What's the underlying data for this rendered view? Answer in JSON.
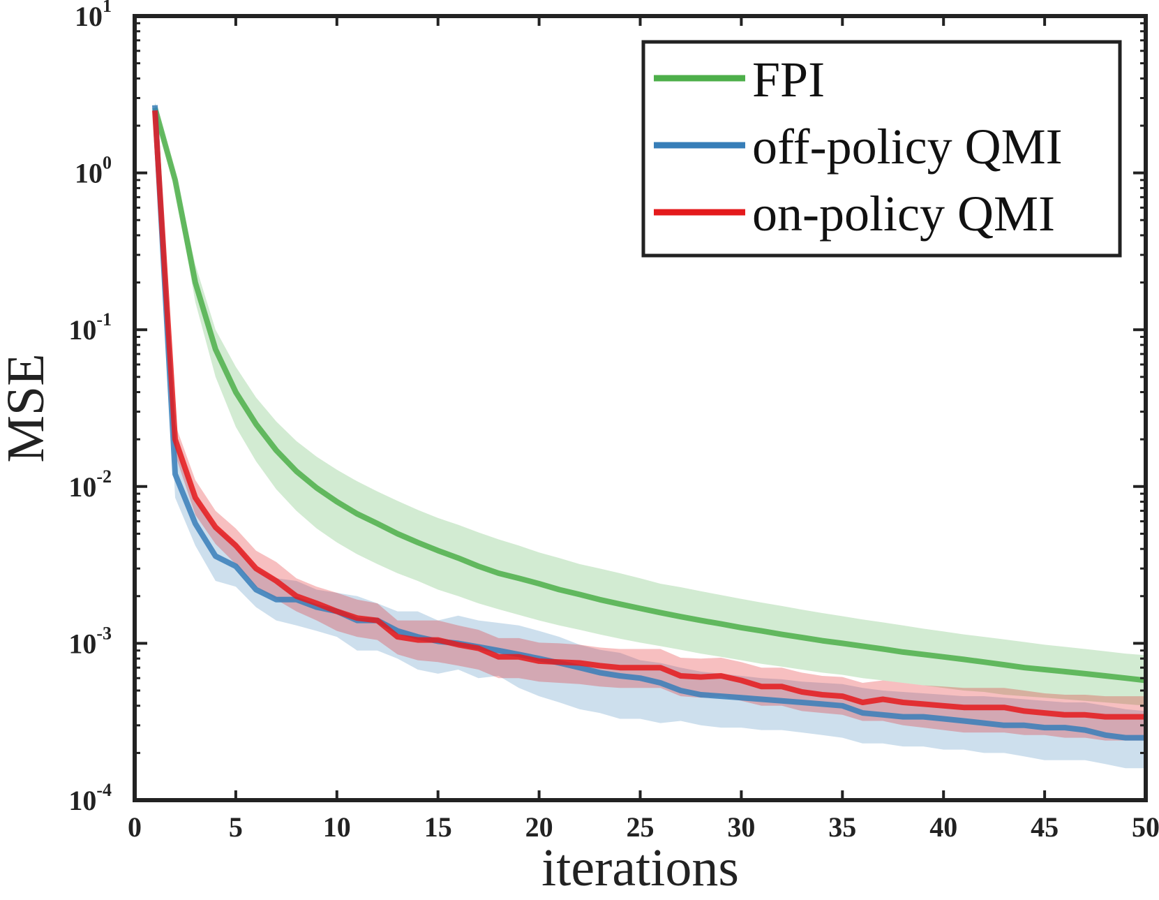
{
  "chart_data": {
    "type": "line",
    "xlabel": "iterations",
    "ylabel": "MSE",
    "yscale": "log",
    "xlim": [
      0,
      50
    ],
    "ylim": [
      0.0001,
      10
    ],
    "grid": false,
    "legend_position": "top-right",
    "x_ticks": [
      "0",
      "5",
      "10",
      "15",
      "20",
      "25",
      "30",
      "35",
      "40",
      "45",
      "50"
    ],
    "y_ticks": [
      {
        "base": "10",
        "exp": "-4",
        "value": 0.0001
      },
      {
        "base": "10",
        "exp": "-3",
        "value": 0.001
      },
      {
        "base": "10",
        "exp": "-2",
        "value": 0.01
      },
      {
        "base": "10",
        "exp": "-1",
        "value": 0.1
      },
      {
        "base": "10",
        "exp": "0",
        "value": 1
      },
      {
        "base": "10",
        "exp": "1",
        "value": 10
      }
    ],
    "x": [
      1,
      2,
      3,
      4,
      5,
      6,
      7,
      8,
      9,
      10,
      11,
      12,
      13,
      14,
      15,
      16,
      17,
      18,
      19,
      20,
      21,
      22,
      23,
      24,
      25,
      26,
      27,
      28,
      29,
      30,
      31,
      32,
      33,
      34,
      35,
      36,
      37,
      38,
      39,
      40,
      41,
      42,
      43,
      44,
      45,
      46,
      47,
      48,
      49,
      50
    ],
    "series": [
      {
        "name": "FPI",
        "color": "#4daf4a",
        "values": [
          2.6,
          0.9,
          0.2,
          0.075,
          0.04,
          0.025,
          0.017,
          0.0125,
          0.0098,
          0.008,
          0.0067,
          0.0058,
          0.005,
          0.0044,
          0.0039,
          0.0035,
          0.0031,
          0.0028,
          0.0026,
          0.0024,
          0.0022,
          0.00205,
          0.0019,
          0.00178,
          0.00167,
          0.00157,
          0.00148,
          0.0014,
          0.00133,
          0.00126,
          0.0012,
          0.00114,
          0.00109,
          0.00104,
          0.001,
          0.00096,
          0.00092,
          0.00088,
          0.00085,
          0.00082,
          0.00079,
          0.00076,
          0.00073,
          0.0007,
          0.00068,
          0.00066,
          0.00064,
          0.00062,
          0.0006,
          0.00058
        ],
        "lower": [
          2.4,
          0.8,
          0.15,
          0.05,
          0.024,
          0.0145,
          0.0096,
          0.007,
          0.0054,
          0.0044,
          0.0037,
          0.0032,
          0.0028,
          0.0025,
          0.0022,
          0.002,
          0.0018,
          0.00165,
          0.00152,
          0.0014,
          0.0013,
          0.00122,
          0.00114,
          0.00107,
          0.00101,
          0.00096,
          0.00091,
          0.00086,
          0.00082,
          0.00078,
          0.00074,
          0.00071,
          0.00068,
          0.00065,
          0.00063,
          0.0006,
          0.00058,
          0.00056,
          0.00054,
          0.00052,
          0.0005,
          0.00049,
          0.00047,
          0.00046,
          0.00045,
          0.00044,
          0.00043,
          0.00042,
          0.00041,
          0.0004
        ],
        "upper": [
          2.8,
          1.0,
          0.26,
          0.1,
          0.058,
          0.037,
          0.026,
          0.0195,
          0.0155,
          0.0128,
          0.0108,
          0.0093,
          0.0081,
          0.0071,
          0.0063,
          0.0057,
          0.0051,
          0.0046,
          0.0042,
          0.0038,
          0.0035,
          0.0032,
          0.003,
          0.0028,
          0.0026,
          0.0024,
          0.00228,
          0.00215,
          0.00203,
          0.00192,
          0.00182,
          0.00173,
          0.00164,
          0.00156,
          0.00149,
          0.00142,
          0.00136,
          0.0013,
          0.00124,
          0.00119,
          0.00114,
          0.0011,
          0.00106,
          0.00102,
          0.00098,
          0.00095,
          0.00092,
          0.00089,
          0.00086,
          0.00084
        ]
      },
      {
        "name": "off-policy QMI",
        "color": "#377eb8",
        "values": [
          2.7,
          0.012,
          0.0058,
          0.0036,
          0.0031,
          0.0022,
          0.0019,
          0.0019,
          0.0017,
          0.0016,
          0.0014,
          0.0014,
          0.0012,
          0.0011,
          0.00103,
          0.001,
          0.00095,
          0.0009,
          0.00085,
          0.0008,
          0.00075,
          0.0007,
          0.00065,
          0.00062,
          0.0006,
          0.00056,
          0.0005,
          0.00047,
          0.00046,
          0.00045,
          0.00044,
          0.00043,
          0.00042,
          0.00041,
          0.0004,
          0.00036,
          0.00035,
          0.00034,
          0.00034,
          0.00033,
          0.00032,
          0.00031,
          0.0003,
          0.0003,
          0.00029,
          0.00029,
          0.00028,
          0.00026,
          0.00025,
          0.00025
        ],
        "lower": [
          2.5,
          0.0085,
          0.0042,
          0.0025,
          0.0023,
          0.0017,
          0.0014,
          0.0013,
          0.0012,
          0.0011,
          0.0009,
          0.0009,
          0.0008,
          0.00068,
          0.00064,
          0.00068,
          0.0006,
          0.00062,
          0.00052,
          0.00046,
          0.00042,
          0.00038,
          0.00036,
          0.00033,
          0.00033,
          0.00031,
          0.00032,
          0.0003,
          0.00029,
          0.00029,
          0.00028,
          0.00028,
          0.00027,
          0.00026,
          0.00025,
          0.00023,
          0.00023,
          0.00022,
          0.00022,
          0.00021,
          0.00021,
          0.0002,
          0.0002,
          0.00019,
          0.00018,
          0.00018,
          0.00018,
          0.00017,
          0.00016,
          0.00016
        ],
        "upper": [
          2.9,
          0.019,
          0.0085,
          0.0055,
          0.0044,
          0.003,
          0.0026,
          0.0025,
          0.0022,
          0.0021,
          0.002,
          0.0018,
          0.0016,
          0.0016,
          0.0014,
          0.0015,
          0.0014,
          0.00135,
          0.0013,
          0.0012,
          0.0011,
          0.00098,
          0.00091,
          0.00087,
          0.00078,
          0.00075,
          0.0007,
          0.00066,
          0.00064,
          0.00062,
          0.0006,
          0.00059,
          0.00057,
          0.00056,
          0.00055,
          0.00052,
          0.0005,
          0.00049,
          0.00048,
          0.00047,
          0.00046,
          0.00046,
          0.00045,
          0.00044,
          0.00043,
          0.00042,
          0.00042,
          0.0004,
          0.00038,
          0.00037
        ]
      },
      {
        "name": "on-policy QMI",
        "color": "#e41a1c",
        "values": [
          2.5,
          0.02,
          0.0085,
          0.0055,
          0.0042,
          0.003,
          0.0025,
          0.002,
          0.0018,
          0.0016,
          0.00145,
          0.0014,
          0.0011,
          0.00105,
          0.00105,
          0.00098,
          0.00093,
          0.00082,
          0.00082,
          0.00077,
          0.00076,
          0.00075,
          0.00072,
          0.0007,
          0.0007,
          0.0007,
          0.00062,
          0.00061,
          0.00062,
          0.00058,
          0.00053,
          0.00053,
          0.00049,
          0.00047,
          0.00046,
          0.00042,
          0.00044,
          0.00042,
          0.00041,
          0.0004,
          0.00039,
          0.00039,
          0.00039,
          0.00037,
          0.00036,
          0.00035,
          0.00035,
          0.00034,
          0.00034,
          0.00034
        ],
        "lower": [
          2.3,
          0.016,
          0.0066,
          0.0043,
          0.0032,
          0.0023,
          0.0019,
          0.0016,
          0.0014,
          0.0012,
          0.0011,
          0.00105,
          0.00085,
          0.00078,
          0.00076,
          0.00072,
          0.00068,
          0.0006,
          0.0006,
          0.00057,
          0.00056,
          0.00055,
          0.00053,
          0.00052,
          0.00052,
          0.00052,
          0.00046,
          0.00045,
          0.00046,
          0.00043,
          0.0004,
          0.0004,
          0.00037,
          0.00036,
          0.00035,
          0.00032,
          0.00032,
          0.0003,
          0.00029,
          0.00028,
          0.00027,
          0.00027,
          0.00027,
          0.00026,
          0.00026,
          0.00025,
          0.00025,
          0.00024,
          0.00024,
          0.00024
        ],
        "upper": [
          2.7,
          0.025,
          0.011,
          0.007,
          0.0054,
          0.0039,
          0.0033,
          0.0026,
          0.0023,
          0.0021,
          0.0019,
          0.0018,
          0.0014,
          0.0014,
          0.0014,
          0.0013,
          0.00122,
          0.00108,
          0.00108,
          0.00101,
          0.001,
          0.00098,
          0.00094,
          0.00092,
          0.00092,
          0.00092,
          0.00081,
          0.0008,
          0.00081,
          0.00076,
          0.0007,
          0.0007,
          0.00065,
          0.00062,
          0.00061,
          0.00056,
          0.00058,
          0.00056,
          0.00054,
          0.00053,
          0.00052,
          0.00052,
          0.00052,
          0.0005,
          0.00048,
          0.00047,
          0.00047,
          0.00046,
          0.00046,
          0.00046
        ]
      }
    ]
  }
}
